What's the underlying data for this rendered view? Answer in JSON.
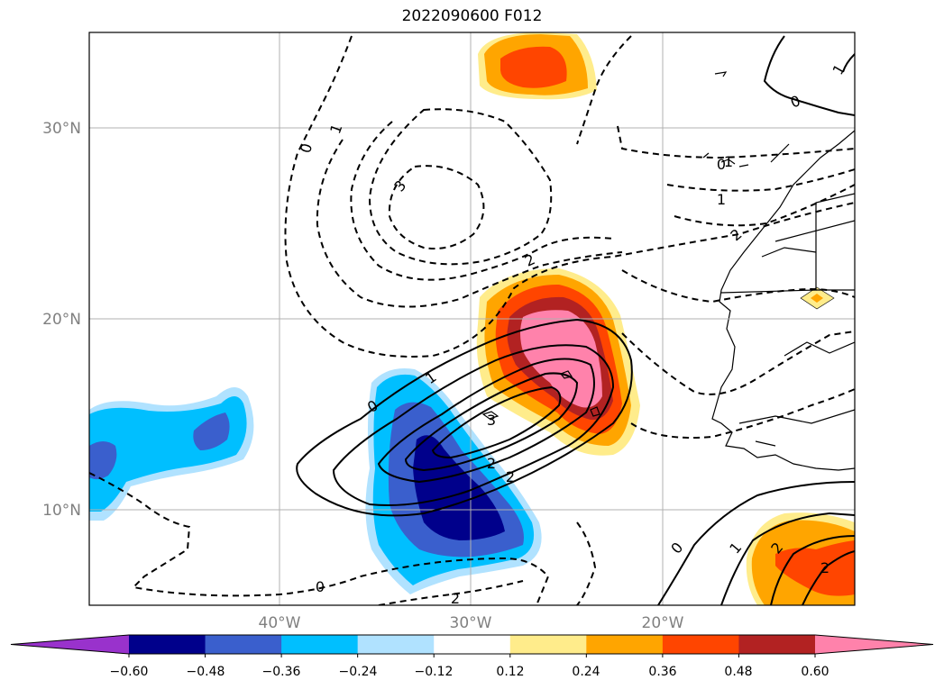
{
  "title": "2022090600 F012",
  "axes": {
    "lat_labels": [
      "30°N",
      "20°N",
      "10°N"
    ],
    "lon_labels": [
      "40°W",
      "30°W",
      "20°W"
    ]
  },
  "colorbar": {
    "ticks": [
      "−0.60",
      "−0.48",
      "−0.36",
      "−0.24",
      "−0.12",
      "0.12",
      "0.24",
      "0.36",
      "0.48",
      "0.60"
    ],
    "colors": [
      "#9932cc",
      "#00008b",
      "#3a5fcd",
      "#00bfff",
      "#b0e2ff",
      "#ffffff",
      "#ffec8b",
      "#ffa500",
      "#ff4500",
      "#b22222",
      "#ff82ab"
    ]
  },
  "contour_labels": {
    "dashed": [
      "0",
      "1",
      "3",
      "0",
      "1",
      "2",
      "2",
      "0",
      "2",
      "1"
    ],
    "solid": [
      "0",
      "1",
      "2",
      "2",
      "3",
      "0",
      "1",
      "2",
      "2",
      "1",
      "0"
    ]
  }
}
